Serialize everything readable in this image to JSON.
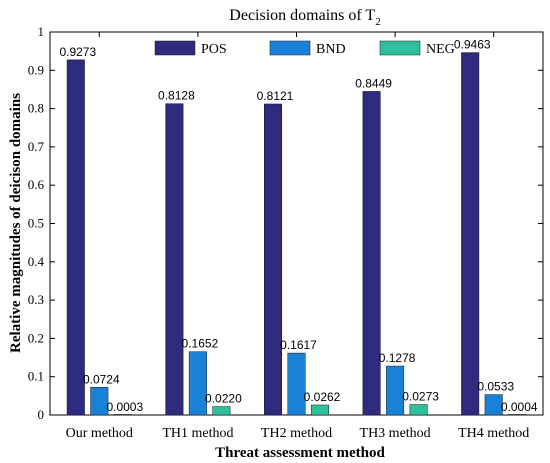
{
  "chart_data": {
    "type": "bar",
    "title_main": "Decision domains of T",
    "title_sub": "2",
    "xlabel": "Threat assessment method",
    "ylabel": "Relative magnitudes of deicison domains",
    "categories": [
      "Our method",
      "TH1 method",
      "TH2 method",
      "TH3 method",
      "TH4 method"
    ],
    "series": [
      {
        "name": "POS",
        "color": "#2e2a7e",
        "values": [
          0.9273,
          0.8128,
          0.8121,
          0.8449,
          0.9463
        ],
        "labels": [
          "0.9273",
          "0.8128",
          "0.8121",
          "0.8449",
          "0.9463"
        ]
      },
      {
        "name": "BND",
        "color": "#1a82d6",
        "values": [
          0.0724,
          0.1652,
          0.1617,
          0.1278,
          0.0533
        ],
        "labels": [
          "0.0724",
          "0.1652",
          "0.1617",
          "0.1278",
          "0.0533"
        ]
      },
      {
        "name": "NEG",
        "color": "#2ebf9c",
        "values": [
          0.0003,
          0.022,
          0.0262,
          0.0273,
          0.0004
        ],
        "labels": [
          "0.0003",
          "0.0220",
          "0.0262",
          "0.0273",
          "0.0004"
        ]
      }
    ],
    "ylim": [
      0,
      1
    ],
    "yticks": [
      "0",
      "0.1",
      "0.2",
      "0.3",
      "0.4",
      "0.5",
      "0.6",
      "0.7",
      "0.8",
      "0.9",
      "1"
    ],
    "grid": false,
    "legend_position": "top-center, horizontal"
  }
}
